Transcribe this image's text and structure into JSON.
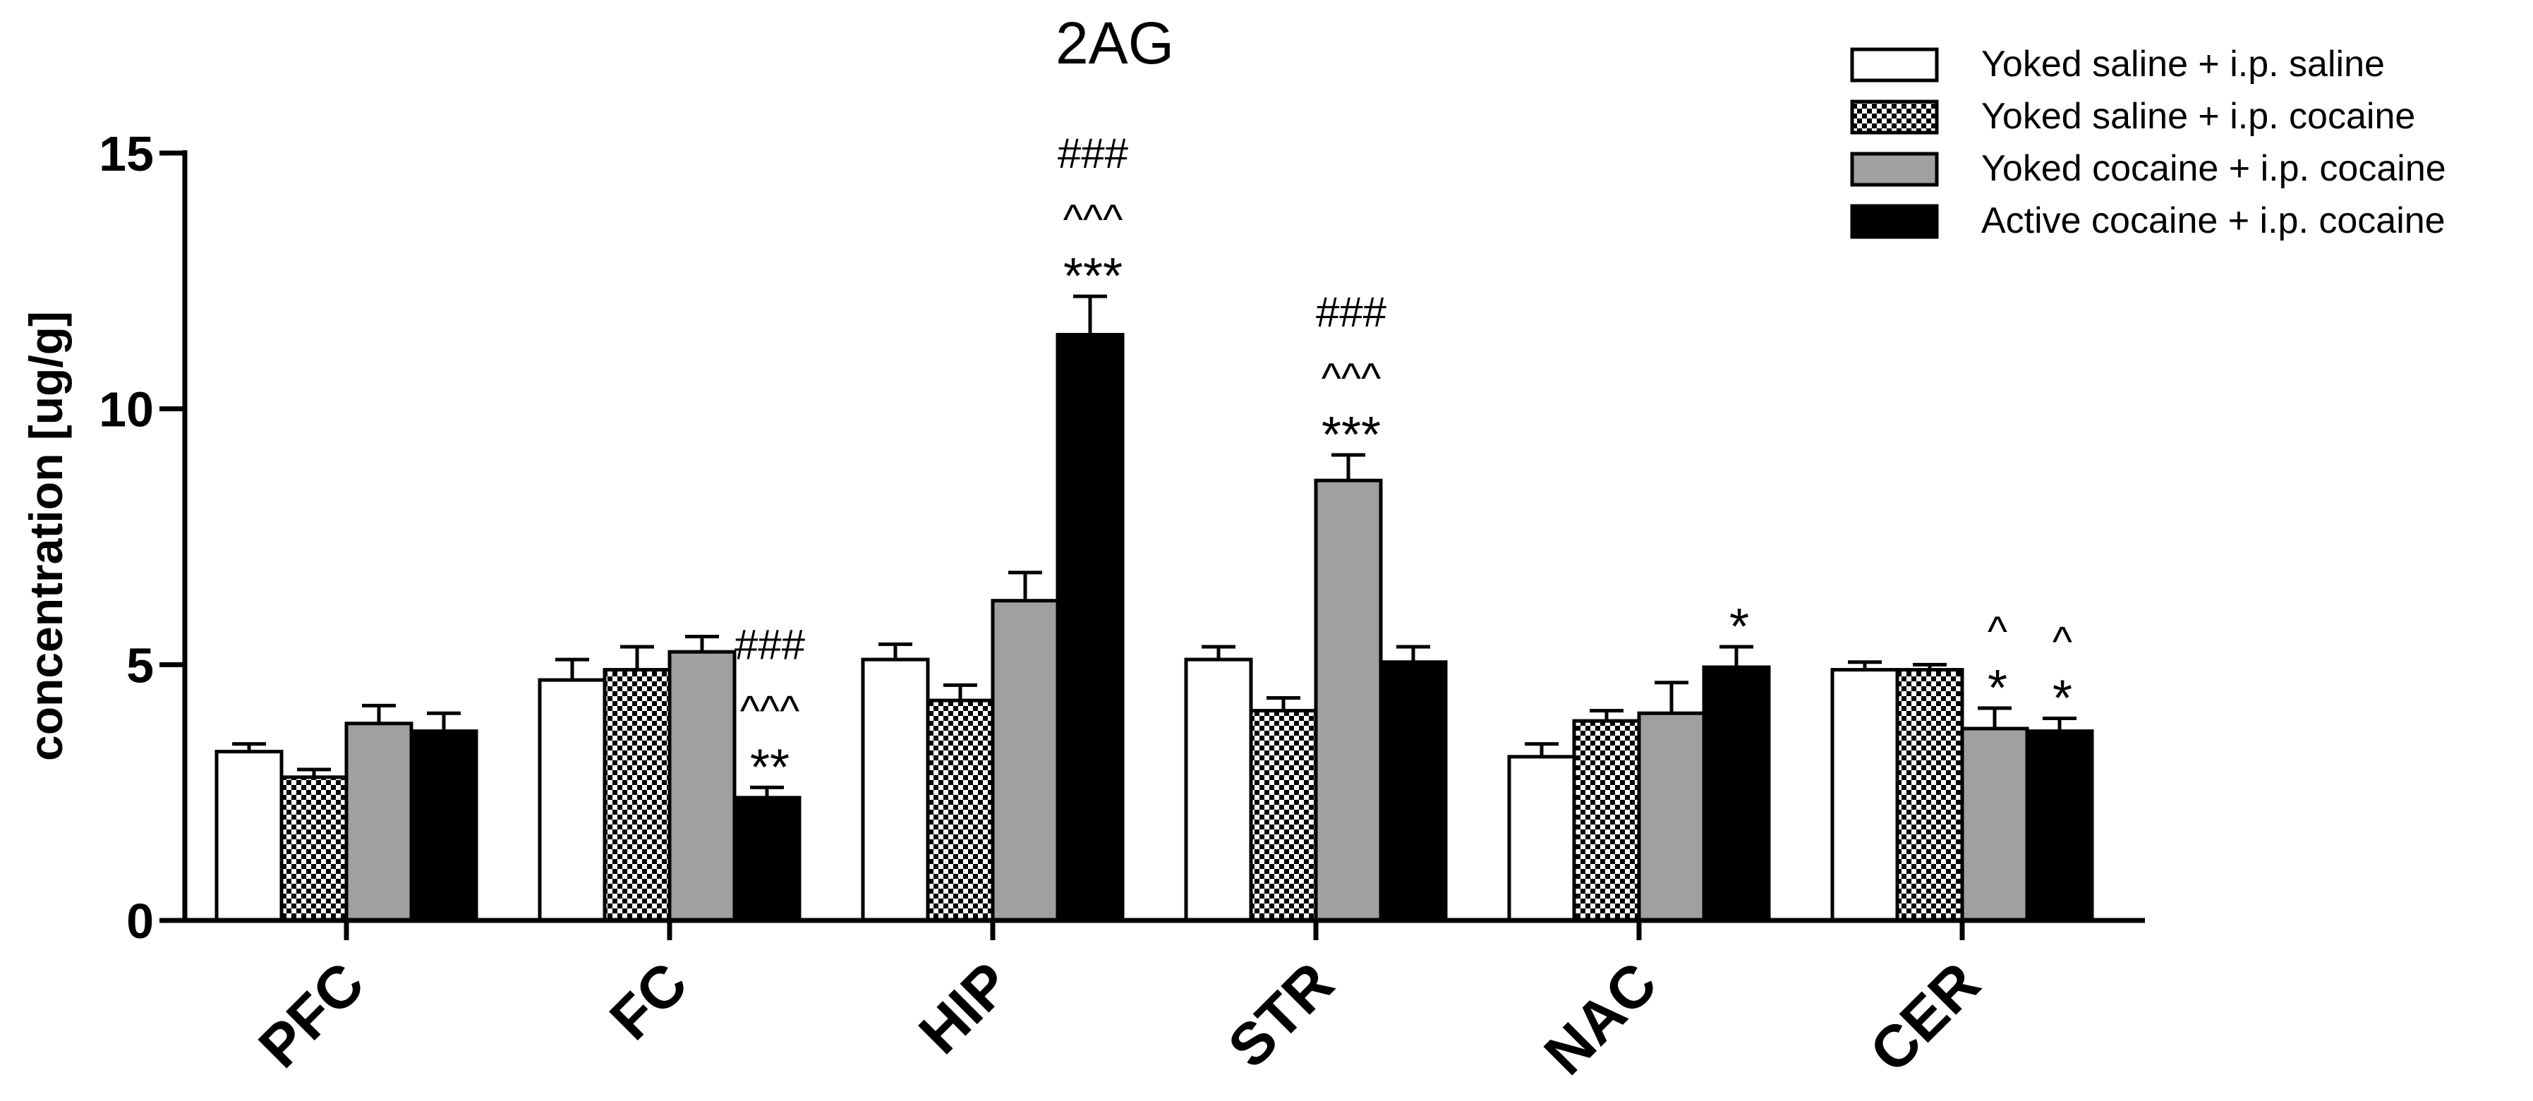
{
  "chart_data": {
    "type": "bar",
    "title": "2AG",
    "xlabel": "",
    "ylabel": "concentration [ug/g]",
    "ylim": [
      0,
      15
    ],
    "yticks": [
      "0",
      "5",
      "10",
      "15"
    ],
    "grid": false,
    "legend_position": "top-right",
    "categories": [
      "PFC",
      "FC",
      "HIP",
      "STR",
      "NAC",
      "CER"
    ],
    "series": [
      {
        "name": "Yoked saline + i.p. saline",
        "style": "white",
        "values": [
          3.3,
          4.7,
          5.1,
          5.1,
          3.2,
          4.9
        ],
        "errors": [
          0.15,
          0.4,
          0.3,
          0.25,
          0.25,
          0.15
        ],
        "annotations": [
          [],
          [],
          [],
          [],
          [],
          []
        ]
      },
      {
        "name": "Yoked saline + i.p. cocaine",
        "style": "checker",
        "values": [
          2.8,
          4.9,
          4.3,
          4.1,
          3.9,
          4.9
        ],
        "errors": [
          0.15,
          0.45,
          0.3,
          0.25,
          0.2,
          0.1
        ],
        "annotations": [
          [],
          [],
          [],
          [],
          [],
          []
        ]
      },
      {
        "name": "Yoked cocaine + i.p. cocaine",
        "style": "gray",
        "values": [
          3.85,
          5.25,
          6.25,
          8.6,
          4.05,
          3.75
        ],
        "errors": [
          0.35,
          0.3,
          0.55,
          0.5,
          0.6,
          0.4
        ],
        "annotations": [
          [],
          [],
          [],
          [
            "###",
            "^^^",
            "***"
          ],
          [],
          [
            "^",
            "*"
          ]
        ]
      },
      {
        "name": "Active cocaine + i.p. cocaine",
        "style": "black",
        "values": [
          3.7,
          2.4,
          11.45,
          5.05,
          4.95,
          3.7
        ],
        "errors": [
          0.35,
          0.2,
          0.75,
          0.3,
          0.4,
          0.25
        ],
        "annotations": [
          [],
          [
            "###",
            "^^^",
            "**"
          ],
          [
            "###",
            "^^^",
            "***"
          ],
          [],
          [
            "*"
          ],
          [
            "^",
            "*"
          ]
        ]
      }
    ]
  },
  "colors": {
    "axis": "#000000",
    "white_bar": "#ffffff",
    "gray_bar": "#a0a0a2",
    "black_bar": "#000000",
    "checker_dark": "#000000",
    "checker_light": "#ffffff"
  }
}
